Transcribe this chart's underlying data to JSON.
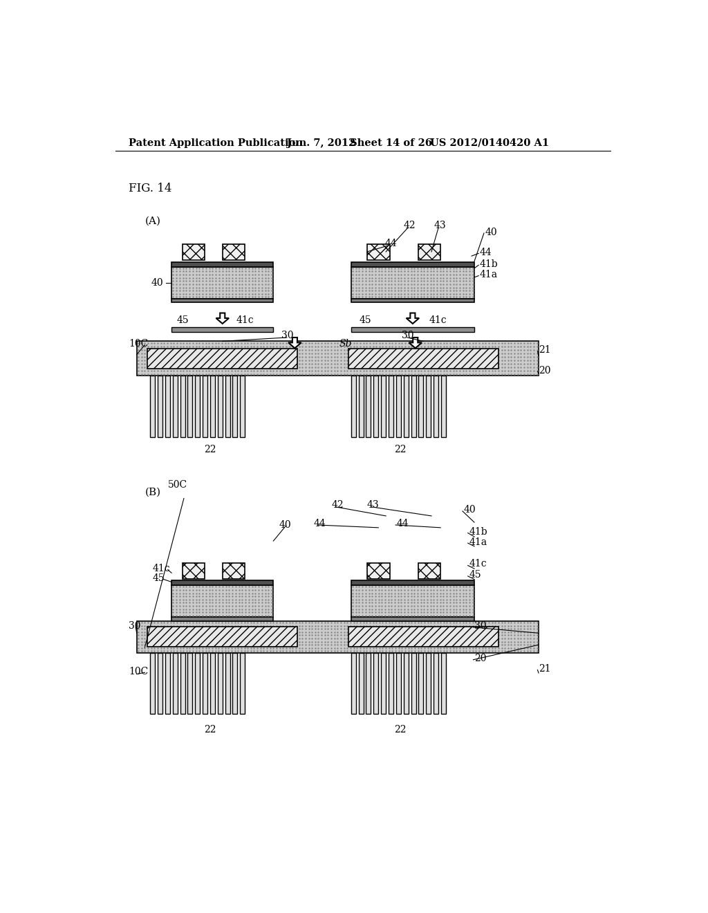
{
  "bg_color": "#ffffff",
  "header_text": "Patent Application Publication",
  "header_date": "Jun. 7, 2012",
  "header_sheet": "Sheet 14 of 26",
  "header_patent": "US 2012/0140420 A1",
  "fig_label": "FIG. 14"
}
